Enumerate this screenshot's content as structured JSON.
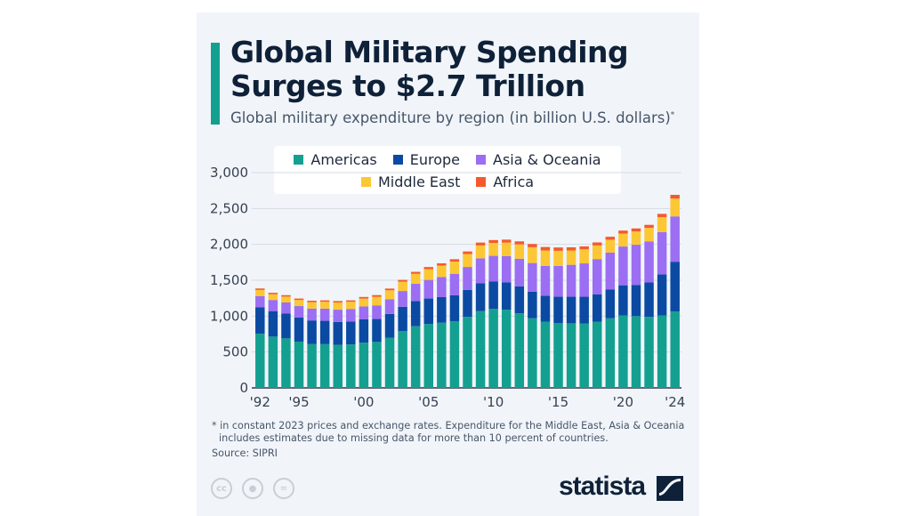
{
  "header": {
    "title_line1": "Global Military Spending",
    "title_line2": "Surges to $2.7 Trillion",
    "subtitle": "Global military expenditure by region (in billion U.S. dollars)",
    "subtitle_marker": "*"
  },
  "colors": {
    "accent": "#14a090",
    "Americas": "#14a090",
    "Europe": "#0b4aa2",
    "Asia & Oceania": "#9b6ef3",
    "Middle East": "#fcc734",
    "Africa": "#f55a2c"
  },
  "chart_data": {
    "type": "bar",
    "stacked": true,
    "title": "Global military expenditure by region (in billion U.S. dollars)",
    "xlabel": "",
    "ylabel": "",
    "ylim": [
      0,
      3000
    ],
    "yticks": [
      0,
      500,
      1000,
      1500,
      2000,
      2500,
      3000
    ],
    "ytick_labels": [
      "0",
      "500",
      "1,000",
      "1,500",
      "2,000",
      "2,500",
      "3,000"
    ],
    "grid": true,
    "legend_position": "top",
    "categories": [
      "1992",
      "1993",
      "1994",
      "1995",
      "1996",
      "1997",
      "1998",
      "1999",
      "2000",
      "2001",
      "2002",
      "2003",
      "2004",
      "2005",
      "2006",
      "2007",
      "2008",
      "2009",
      "2010",
      "2011",
      "2012",
      "2013",
      "2014",
      "2015",
      "2016",
      "2017",
      "2018",
      "2019",
      "2020",
      "2021",
      "2022",
      "2023",
      "2024"
    ],
    "xtick_labels": {
      "1992": "'92",
      "1995": "'95",
      "2000": "'00",
      "2005": "'05",
      "2010": "'10",
      "2015": "'15",
      "2020": "'20",
      "2024": "'24"
    },
    "series": [
      {
        "name": "Americas",
        "values": [
          755,
          715,
          690,
          645,
          610,
          610,
          600,
          605,
          630,
          640,
          700,
          790,
          860,
          890,
          910,
          930,
          990,
          1070,
          1100,
          1090,
          1040,
          970,
          920,
          905,
          900,
          895,
          920,
          970,
          1010,
          1000,
          990,
          1010,
          1065
        ]
      },
      {
        "name": "Europe",
        "values": [
          370,
          355,
          345,
          335,
          330,
          325,
          320,
          320,
          325,
          320,
          330,
          340,
          350,
          355,
          355,
          360,
          375,
          390,
          385,
          380,
          375,
          370,
          365,
          365,
          370,
          375,
          385,
          400,
          420,
          435,
          480,
          570,
          693
        ]
      },
      {
        "name": "Asia & Oceania",
        "values": [
          155,
          155,
          155,
          160,
          165,
          170,
          170,
          175,
          180,
          190,
          205,
          220,
          240,
          260,
          280,
          300,
          320,
          345,
          355,
          365,
          385,
          400,
          415,
          430,
          445,
          465,
          490,
          515,
          540,
          560,
          570,
          590,
          632
        ]
      },
      {
        "name": "Middle East",
        "values": [
          85,
          80,
          82,
          85,
          90,
          95,
          100,
          100,
          110,
          120,
          125,
          130,
          140,
          150,
          160,
          170,
          180,
          180,
          180,
          190,
          200,
          220,
          215,
          210,
          200,
          195,
          190,
          180,
          180,
          185,
          190,
          210,
          248
        ]
      },
      {
        "name": "Africa",
        "values": [
          20,
          20,
          20,
          20,
          20,
          20,
          20,
          20,
          22,
          23,
          24,
          25,
          27,
          29,
          31,
          33,
          36,
          40,
          40,
          41,
          42,
          45,
          48,
          47,
          44,
          42,
          42,
          41,
          42,
          42,
          42,
          45,
          52
        ]
      }
    ]
  },
  "legend": {
    "items": [
      "Americas",
      "Europe",
      "Asia & Oceania",
      "Middle East",
      "Africa"
    ]
  },
  "footer": {
    "footnote_line1": "* in constant 2023 prices and exchange rates. Expenditure for the Middle East, Asia & Oceania",
    "footnote_line2": "includes estimates due to missing data for more than 10 percent of countries.",
    "source": "Source: SIPRI",
    "cc_icons": [
      "cc",
      "by",
      "nd"
    ],
    "logo_text": "statista"
  }
}
